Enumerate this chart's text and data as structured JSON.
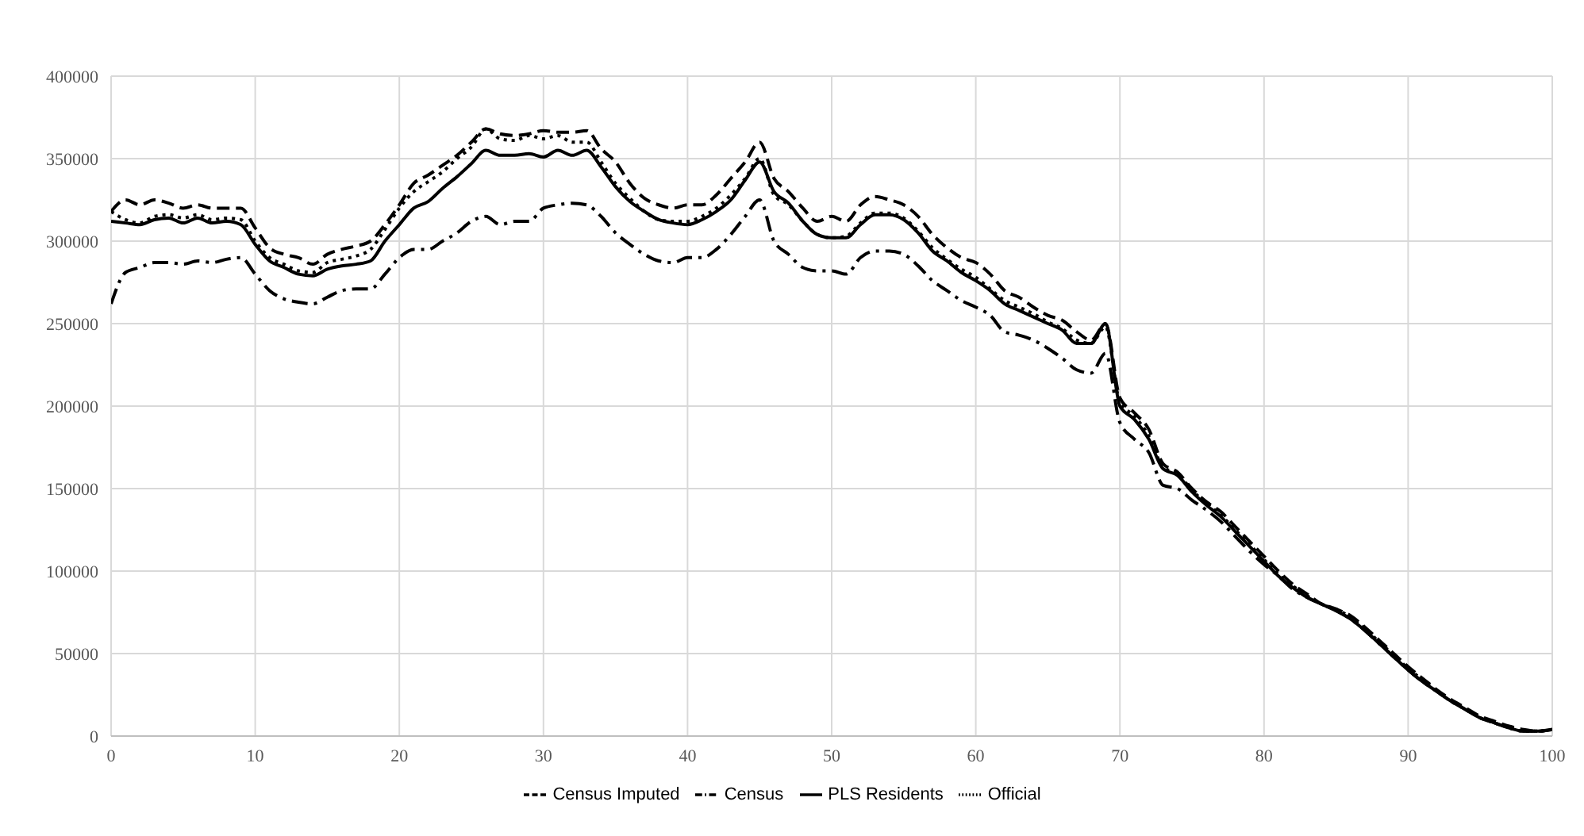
{
  "chart_data": {
    "type": "line",
    "x": [
      0,
      1,
      2,
      3,
      4,
      5,
      6,
      7,
      8,
      9,
      10,
      11,
      12,
      13,
      14,
      15,
      16,
      17,
      18,
      19,
      20,
      21,
      22,
      23,
      24,
      25,
      26,
      27,
      28,
      29,
      30,
      31,
      32,
      33,
      34,
      35,
      36,
      37,
      38,
      39,
      40,
      41,
      42,
      43,
      44,
      45,
      46,
      47,
      48,
      49,
      50,
      51,
      52,
      53,
      54,
      55,
      56,
      57,
      58,
      59,
      60,
      61,
      62,
      63,
      64,
      65,
      66,
      67,
      68,
      69,
      70,
      71,
      72,
      73,
      74,
      75,
      76,
      77,
      78,
      79,
      80,
      81,
      82,
      83,
      84,
      85,
      86,
      87,
      88,
      89,
      90,
      91,
      92,
      93,
      94,
      95,
      96,
      97,
      98,
      99,
      100
    ],
    "series": [
      {
        "name": "Census Imputed",
        "color": "#000000",
        "line_style": "dashed",
        "values": [
          318000,
          325000,
          322000,
          325000,
          323000,
          320000,
          322000,
          320000,
          320000,
          320000,
          308000,
          296000,
          292000,
          290000,
          286000,
          292000,
          295000,
          297000,
          300000,
          310000,
          322000,
          335000,
          340000,
          346000,
          352000,
          360000,
          368000,
          365000,
          364000,
          365000,
          367000,
          366000,
          366000,
          367000,
          356000,
          348000,
          335000,
          326000,
          322000,
          320000,
          322000,
          322000,
          328000,
          338000,
          348000,
          360000,
          338000,
          330000,
          320000,
          312000,
          315000,
          312000,
          322000,
          327000,
          325000,
          322000,
          315000,
          304000,
          296000,
          290000,
          287000,
          280000,
          270000,
          266000,
          260000,
          255000,
          252000,
          245000,
          240000,
          250000,
          205000,
          196000,
          186000,
          165000,
          160000,
          150000,
          142000,
          136000,
          127000,
          118000,
          109000,
          100000,
          92000,
          86000,
          80000,
          77000,
          73000,
          66000,
          58000,
          50000,
          42000,
          35000,
          28000,
          22000,
          17000,
          12000,
          9000,
          6000,
          4000,
          3000,
          4000
        ]
      },
      {
        "name": "Census",
        "color": "#000000",
        "line_style": "dashdot",
        "values": [
          262000,
          281000,
          284000,
          287000,
          287000,
          286000,
          288000,
          287000,
          289000,
          290000,
          280000,
          270000,
          265000,
          263000,
          262000,
          266000,
          270000,
          271000,
          271000,
          280000,
          290000,
          295000,
          295000,
          300000,
          305000,
          312000,
          315000,
          310000,
          312000,
          312000,
          320000,
          322000,
          323000,
          322000,
          315000,
          305000,
          298000,
          292000,
          288000,
          287000,
          290000,
          290000,
          295000,
          304000,
          315000,
          325000,
          300000,
          292000,
          284000,
          282000,
          282000,
          280000,
          290000,
          294000,
          294000,
          292000,
          285000,
          276000,
          270000,
          264000,
          260000,
          255000,
          245000,
          243000,
          240000,
          235000,
          229000,
          222000,
          220000,
          232000,
          190000,
          180000,
          172000,
          152000,
          150000,
          143000,
          137000,
          130000,
          121000,
          112000,
          104000,
          97000,
          89000,
          84000,
          80000,
          76000,
          71000,
          64000,
          56000,
          48000,
          40000,
          33000,
          27000,
          21000,
          16000,
          11000,
          8000,
          5000,
          3000,
          3000,
          4000
        ]
      },
      {
        "name": "PLS Residents",
        "color": "#000000",
        "line_style": "solid",
        "values": [
          312000,
          311000,
          310000,
          313000,
          314000,
          311000,
          314000,
          311000,
          312000,
          310000,
          298000,
          288000,
          284000,
          280000,
          279000,
          283000,
          285000,
          286000,
          288000,
          300000,
          310000,
          320000,
          324000,
          332000,
          339000,
          347000,
          355000,
          352000,
          352000,
          353000,
          351000,
          355000,
          352000,
          355000,
          345000,
          333000,
          324000,
          318000,
          313000,
          311000,
          310000,
          313000,
          318000,
          325000,
          337000,
          348000,
          330000,
          323000,
          312000,
          304000,
          302000,
          302000,
          310000,
          316000,
          316000,
          313000,
          305000,
          294000,
          288000,
          281000,
          276000,
          270000,
          262000,
          258000,
          254000,
          250000,
          246000,
          238000,
          238000,
          250000,
          200000,
          192000,
          180000,
          162000,
          158000,
          148000,
          140000,
          133000,
          124000,
          115000,
          106000,
          97000,
          90000,
          84000,
          80000,
          76000,
          71000,
          64000,
          56000,
          48000,
          40000,
          33000,
          27000,
          21000,
          16000,
          11000,
          8000,
          5000,
          3000,
          3000,
          4000
        ]
      },
      {
        "name": "Official",
        "color": "#000000",
        "line_style": "dotted",
        "values": [
          318000,
          313000,
          311000,
          315000,
          316000,
          314000,
          316000,
          313000,
          314000,
          313000,
          300000,
          290000,
          286000,
          282000,
          281000,
          287000,
          289000,
          291000,
          295000,
          307000,
          320000,
          330000,
          336000,
          342000,
          350000,
          357000,
          368000,
          362000,
          361000,
          364000,
          362000,
          364000,
          360000,
          360000,
          348000,
          335000,
          326000,
          318000,
          313000,
          312000,
          312000,
          315000,
          320000,
          328000,
          338000,
          350000,
          328000,
          322000,
          312000,
          304000,
          302000,
          303000,
          311000,
          317000,
          317000,
          314000,
          306000,
          296000,
          289000,
          283000,
          278000,
          271000,
          264000,
          260000,
          256000,
          251000,
          247000,
          240000,
          238000,
          248000,
          202000,
          194000,
          182000,
          163000,
          159000,
          149000,
          141000,
          134000,
          125000,
          116000,
          107000,
          98000,
          91000,
          85000,
          80000,
          77000,
          72000,
          65000,
          57000,
          49000,
          41000,
          34000,
          27000,
          21000,
          16000,
          11000,
          8000,
          5000,
          3000,
          3000,
          4000
        ]
      }
    ],
    "xlim": [
      0,
      100
    ],
    "xticks": [
      0,
      10,
      20,
      30,
      40,
      50,
      60,
      70,
      80,
      90,
      100
    ],
    "ylim": [
      0,
      400000
    ],
    "yticks": [
      0,
      50000,
      100000,
      150000,
      200000,
      250000,
      300000,
      350000,
      400000
    ],
    "grid": true,
    "legend": "bottom",
    "marker": "none"
  }
}
